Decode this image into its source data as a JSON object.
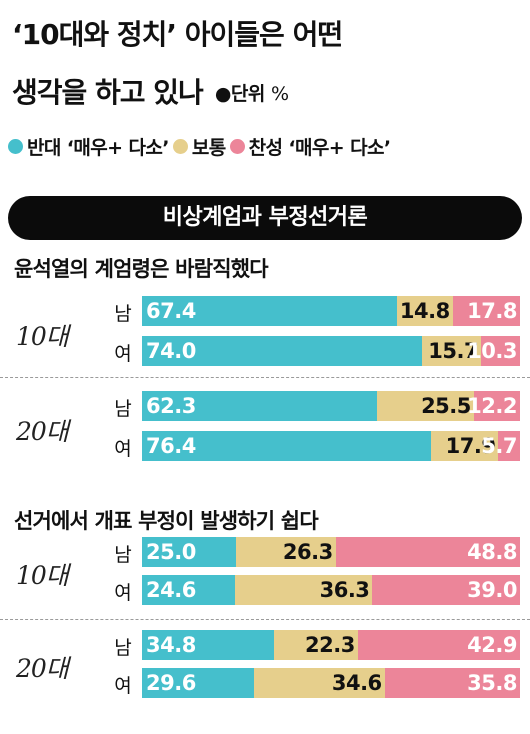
{
  "title_line1": "‘10대와 정치’ 아이들은 어떤",
  "title_line2": "생각을 하고 있나",
  "unit_label": "●단위",
  "unit_pct": "%",
  "legend": [
    {
      "label": "반대 ‘매우+ 다소’",
      "color": "#45bfcc"
    },
    {
      "label": "보통",
      "color": "#e6cf8c"
    },
    {
      "label": "찬성 ‘매우+ 다소’",
      "color": "#ec8599"
    }
  ],
  "banner": "비상계엄과 부정선거론",
  "chart_data": [
    {
      "type": "bar",
      "title": "윤석열의 계엄령은 바람직했다",
      "series": [
        {
          "name": "반대 ‘매우+ 다소’",
          "color": "#45bfcc"
        },
        {
          "name": "보통",
          "color": "#e6cf8c"
        },
        {
          "name": "찬성 ‘매우+ 다소’",
          "color": "#ec8599"
        }
      ],
      "groups": [
        {
          "age": "10대",
          "rows": [
            {
              "gender": "남",
              "values": [
                "67.4",
                "14.8",
                "17.8"
              ]
            },
            {
              "gender": "여",
              "values": [
                "74.0",
                "15.7",
                "10.3"
              ]
            }
          ]
        },
        {
          "age": "20대",
          "rows": [
            {
              "gender": "남",
              "values": [
                "62.3",
                "25.5",
                "12.2"
              ]
            },
            {
              "gender": "여",
              "values": [
                "76.4",
                "17.9",
                "5.7"
              ]
            }
          ]
        }
      ]
    },
    {
      "type": "bar",
      "title": "선거에서 개표 부정이 발생하기 쉽다",
      "series": [
        {
          "name": "반대 ‘매우+ 다소’",
          "color": "#45bfcc"
        },
        {
          "name": "보통",
          "color": "#e6cf8c"
        },
        {
          "name": "찬성 ‘매우+ 다소’",
          "color": "#ec8599"
        }
      ],
      "groups": [
        {
          "age": "10대",
          "rows": [
            {
              "gender": "남",
              "values": [
                "25.0",
                "26.3",
                "48.8"
              ]
            },
            {
              "gender": "여",
              "values": [
                "24.6",
                "36.3",
                "39.0"
              ]
            }
          ]
        },
        {
          "age": "20대",
          "rows": [
            {
              "gender": "남",
              "values": [
                "34.8",
                "22.3",
                "42.9"
              ]
            },
            {
              "gender": "여",
              "values": [
                "29.6",
                "34.6",
                "35.8"
              ]
            }
          ]
        }
      ]
    }
  ]
}
